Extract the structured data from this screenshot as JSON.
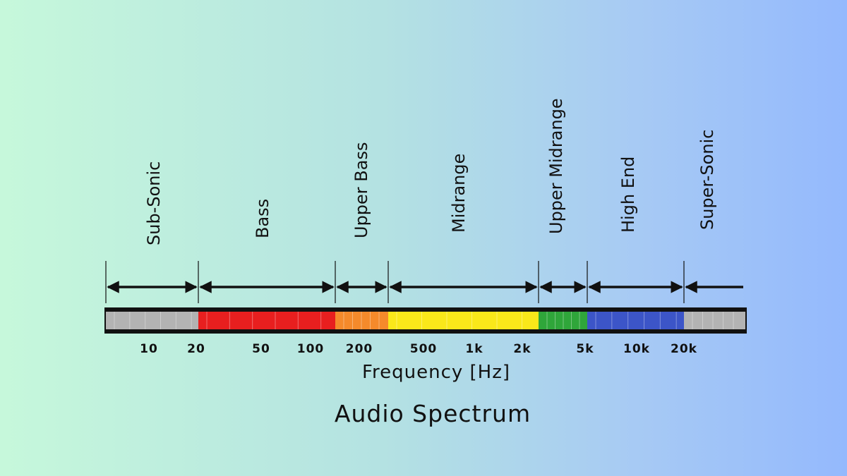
{
  "bands": [
    "Sub-Sonic",
    "Bass",
    "Upper Bass",
    "Midrange",
    "Upper Midrange",
    "High End",
    "Super-Sonic"
  ],
  "ticks": [
    "10",
    "20",
    "50",
    "100",
    "200",
    "500",
    "1k",
    "2k",
    "5k",
    "10k",
    "20k"
  ],
  "axis_label": "Frequency [Hz]",
  "title": "Audio Spectrum"
}
